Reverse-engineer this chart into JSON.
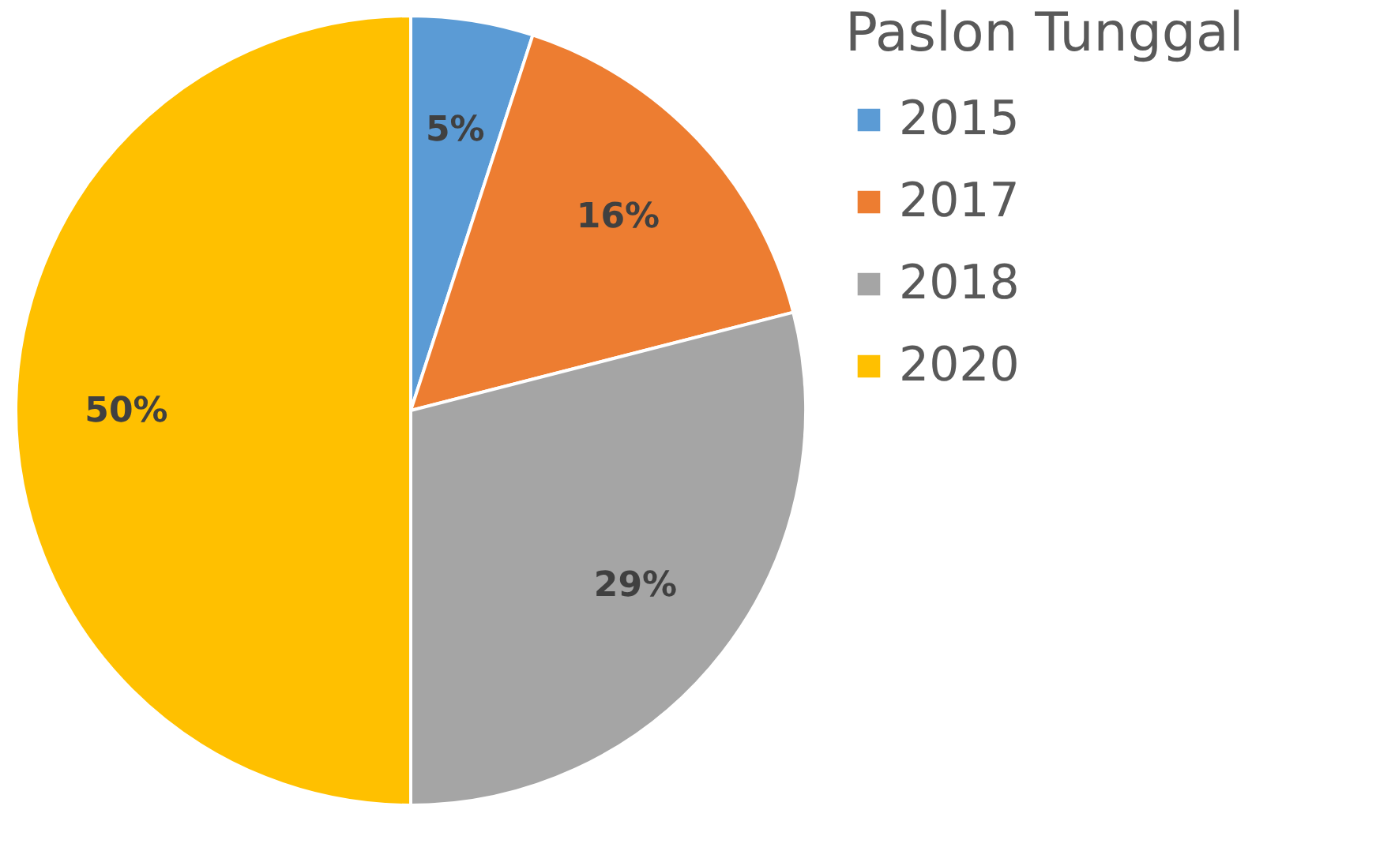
{
  "chart_data": {
    "type": "pie",
    "legend_title": "Paslon Tunggal",
    "categories": [
      "2015",
      "2017",
      "2018",
      "2020"
    ],
    "values": [
      5,
      16,
      29,
      50
    ],
    "colors": [
      "#5b9bd5",
      "#ed7d31",
      "#a5a5a5",
      "#ffc000"
    ],
    "value_labels": [
      "5%",
      "16%",
      "29%",
      "50%"
    ],
    "legend": "right"
  }
}
